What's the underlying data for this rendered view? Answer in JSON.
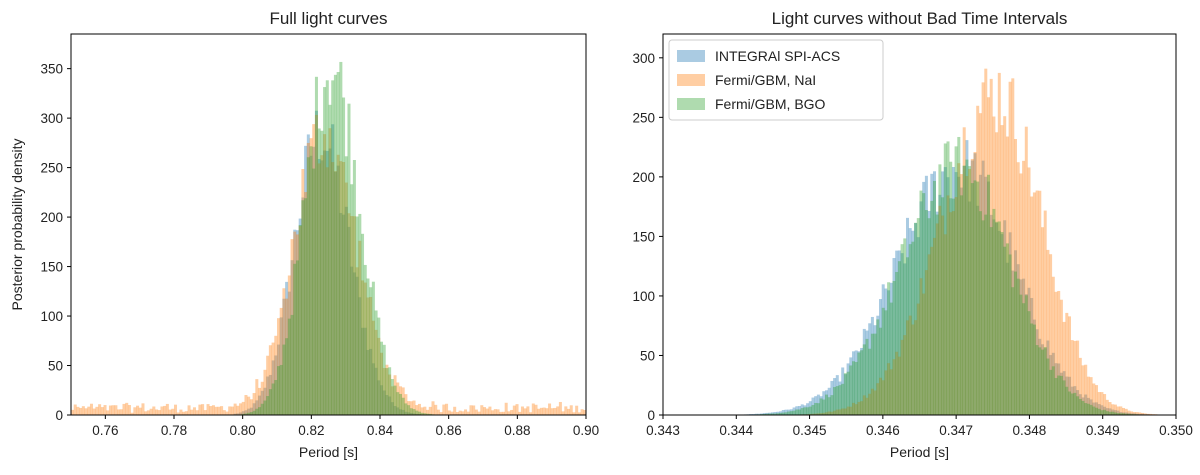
{
  "chart_data": [
    {
      "type": "histogram",
      "title": "Full light curves",
      "xlabel": "Period [s]",
      "ylabel": "Posterior probability density",
      "xlim": [
        0.75,
        0.9
      ],
      "ylim": [
        0,
        385
      ],
      "xticks": [
        0.76,
        0.78,
        0.8,
        0.82,
        0.84,
        0.86,
        0.88,
        0.9
      ],
      "xtick_labels": [
        "0.76",
        "0.78",
        "0.80",
        "0.82",
        "0.84",
        "0.86",
        "0.88",
        "0.90"
      ],
      "yticks": [
        0,
        50,
        100,
        150,
        200,
        250,
        300,
        350
      ],
      "ytick_labels": [
        "0",
        "50",
        "100",
        "150",
        "200",
        "250",
        "300",
        "350"
      ],
      "grid": false,
      "legend": "none",
      "series": [
        {
          "color": "#1f77b4",
          "peak": 0.8225,
          "sigma_left": 0.0075,
          "sigma_right": 0.0085,
          "height": 285,
          "range": [
            0.797,
            0.86
          ]
        },
        {
          "color": "#ff7f0e",
          "peak": 0.8235,
          "sigma_left": 0.0085,
          "sigma_right": 0.0095,
          "height": 280,
          "range": [
            0.75,
            0.9
          ],
          "tail_level": 8
        },
        {
          "color": "#2ca02c",
          "peak": 0.8255,
          "sigma_left": 0.0075,
          "sigma_right": 0.0085,
          "height": 352,
          "range": [
            0.8,
            0.86
          ]
        }
      ]
    },
    {
      "type": "histogram",
      "title": "Light curves without Bad Time Intervals",
      "xlabel": "Period [s]",
      "ylabel": "",
      "xlim": [
        0.343,
        0.35
      ],
      "ylim": [
        0,
        320
      ],
      "xticks": [
        0.343,
        0.344,
        0.345,
        0.346,
        0.347,
        0.348,
        0.349,
        0.35
      ],
      "xtick_labels": [
        "0.343",
        "0.344",
        "0.345",
        "0.346",
        "0.347",
        "0.348",
        "0.349",
        "0.350"
      ],
      "yticks": [
        0,
        50,
        100,
        150,
        200,
        250,
        300
      ],
      "ytick_labels": [
        "0",
        "50",
        "100",
        "150",
        "200",
        "250",
        "300"
      ],
      "grid": false,
      "legend": "top-left",
      "series": [
        {
          "name": "INTEGRAl SPI-ACS",
          "color": "#1f77b4",
          "peak": 0.34705,
          "sigma_left": 0.00085,
          "sigma_right": 0.00075,
          "height": 208,
          "range": [
            0.3432,
            0.3497
          ]
        },
        {
          "name": "Fermi/GBM, NaI",
          "color": "#ff7f0e",
          "peak": 0.34755,
          "sigma_left": 0.00075,
          "sigma_right": 0.00062,
          "height": 270,
          "range": [
            0.3445,
            0.3499
          ]
        },
        {
          "name": "Fermi/GBM, BGO",
          "color": "#2ca02c",
          "peak": 0.34705,
          "sigma_left": 0.0008,
          "sigma_right": 0.0007,
          "height": 208,
          "range": [
            0.344,
            0.3498
          ]
        }
      ]
    }
  ]
}
